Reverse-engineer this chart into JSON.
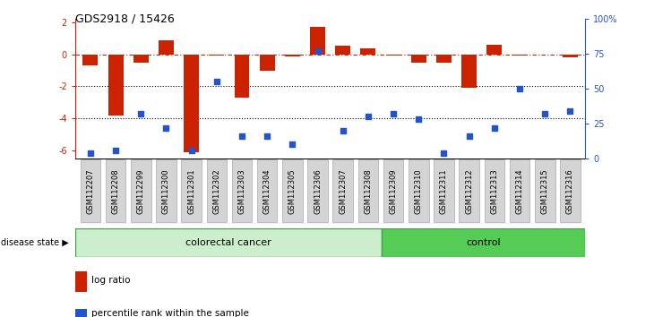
{
  "title": "GDS2918 / 15426",
  "samples": [
    "GSM112207",
    "GSM112208",
    "GSM112299",
    "GSM112300",
    "GSM112301",
    "GSM112302",
    "GSM112303",
    "GSM112304",
    "GSM112305",
    "GSM112306",
    "GSM112307",
    "GSM112308",
    "GSM112309",
    "GSM112310",
    "GSM112311",
    "GSM112312",
    "GSM112313",
    "GSM112314",
    "GSM112315",
    "GSM112316"
  ],
  "log_ratio": [
    -0.7,
    -3.8,
    -0.5,
    0.85,
    -6.1,
    -0.1,
    -2.7,
    -1.0,
    -0.15,
    1.7,
    0.55,
    0.35,
    -0.1,
    -0.5,
    -0.55,
    -2.1,
    0.6,
    -0.05,
    0.0,
    -0.2
  ],
  "percentile_rank": [
    4,
    6,
    32,
    22,
    6,
    55,
    16,
    16,
    10,
    77,
    20,
    30,
    32,
    28,
    4,
    16,
    22,
    50,
    32,
    34
  ],
  "colorectal_cancer_count": 12,
  "disease_state_label": "disease state",
  "colorectal_label": "colorectal cancer",
  "control_label": "control",
  "bar_color": "#CC2200",
  "dot_color": "#2255CC",
  "ylim_left": [
    -6.5,
    2.2
  ],
  "ylim_right": [
    0,
    100
  ],
  "yticks_left": [
    2,
    0,
    -2,
    -4,
    -6
  ],
  "yticks_right": [
    0,
    25,
    50,
    75,
    100
  ],
  "ytick_labels_right": [
    "0",
    "25",
    "50",
    "75",
    "100%"
  ],
  "dotted_lines": [
    -2.0,
    -4.0
  ],
  "background_color": "#ffffff",
  "cc_color": "#cceecc",
  "ctrl_color": "#55cc55",
  "disease_border_color": "#44aa44"
}
